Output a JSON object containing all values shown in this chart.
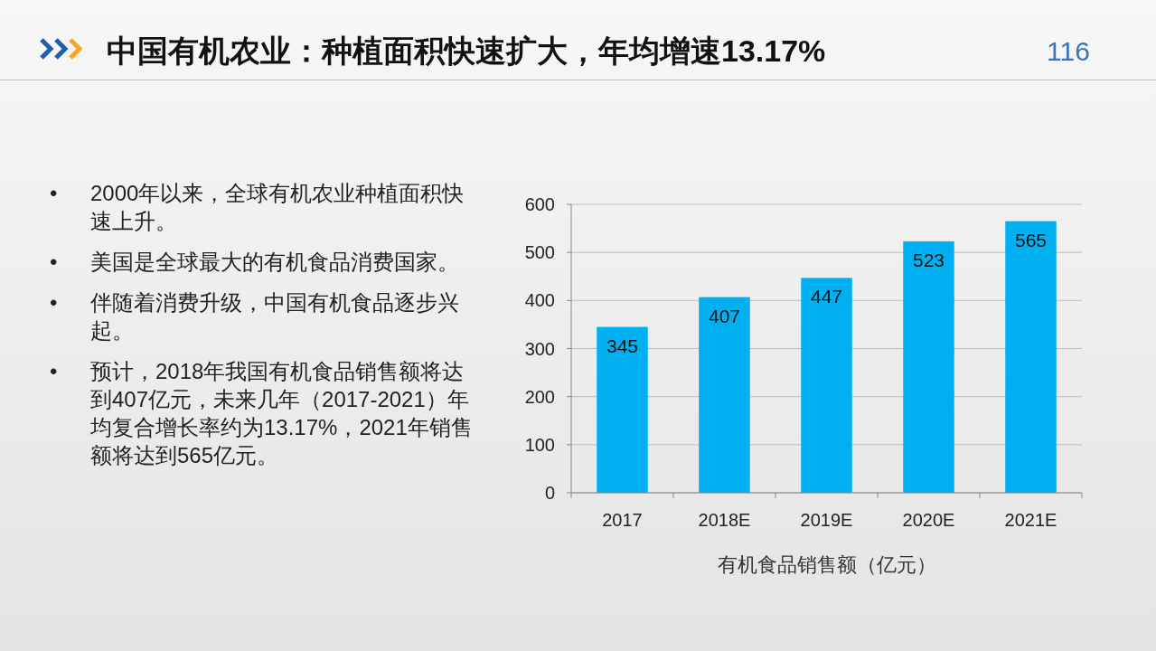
{
  "chart_data": {
    "type": "bar",
    "title": "中国有机农业：种植面积快速扩大，年均增速13.17%",
    "xlabel": "有机食品销售额（亿元）",
    "annotations": [
      "116",
      "• 2000年以来，全球有机农业种植面积快速上升。",
      "• 美国是全球最大的有机食品消费国家。",
      "• 伴随着消费升级，中国有机食品逐步兴起。",
      "• 预计，2018年我国有机食品销售额将达到407亿元，未来几年（2017-2021）年均复合增长率约为13.17%，2021年销售额将达到565亿元。"
    ],
    "categories": [
      "2017",
      "2018E",
      "2019E",
      "2020E",
      "2021E"
    ],
    "values": [
      345,
      407,
      447,
      523,
      565
    ],
    "color": "#00b0f0",
    "ylim": [
      0,
      600
    ],
    "yticks": [
      0,
      100,
      200,
      300,
      400,
      500,
      600
    ],
    "grid": "y",
    "data_labels": true
  }
}
